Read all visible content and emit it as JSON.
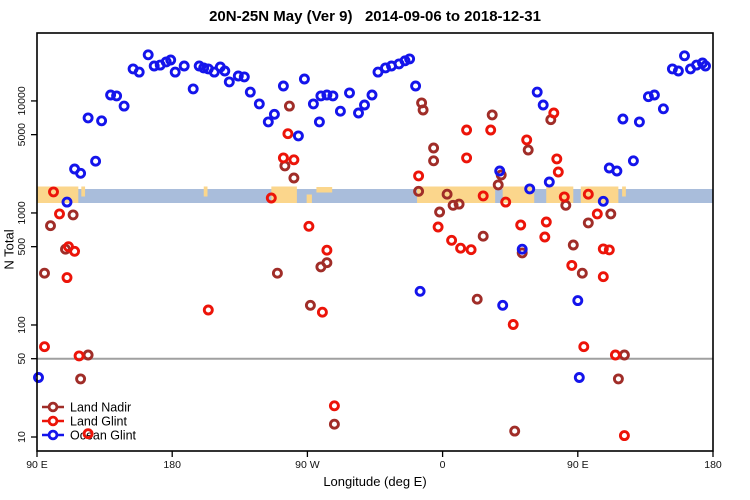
{
  "figure": {
    "title": "20N-25N May (Ver 9)   2014-09-06 to 2018-12-31",
    "xlabel": "Longitude (deg E)",
    "ylabel": "N Total"
  },
  "chart_data": {
    "type": "scatter",
    "title": "20N-25N May (Ver 9)   2014-09-06 to 2018-12-31",
    "xlabel": "Longitude (deg E)",
    "ylabel": "N Total",
    "x_axis": {
      "min": 90,
      "max": 540,
      "note": "longitude axis wraps: 90E eastward around globe to 180",
      "ticks": [
        {
          "v": 90,
          "label": "90 E"
        },
        {
          "v": 180,
          "label": "180"
        },
        {
          "v": 270,
          "label": "90 W"
        },
        {
          "v": 360,
          "label": "0"
        },
        {
          "v": 450,
          "label": "90 E"
        },
        {
          "v": 540,
          "label": "180"
        }
      ]
    },
    "y_axis": {
      "scale": "log",
      "min": 7.5,
      "max": 40400,
      "ticks": [
        10000,
        5000,
        1000,
        500,
        100,
        50,
        10
      ]
    },
    "reference_line": {
      "y": 50,
      "color": "#A0A0A0"
    },
    "map_band": {
      "description": "20N-25N latitude strip world map drawn across the plot",
      "n_top": 1710,
      "n_bottom": 1230,
      "ocean_color": "#A9BDDB",
      "land_color": "#FBD68C",
      "segments": [
        {
          "from": 90,
          "to": 117.5,
          "part": "full",
          "region": "south-asia"
        },
        {
          "from": 119.5,
          "to": 122,
          "part": "upper",
          "region": "taiwan"
        },
        {
          "from": 201,
          "to": 203.5,
          "part": "upper",
          "region": "hawaii"
        },
        {
          "from": 246,
          "to": 263,
          "part": "full",
          "region": "mexico"
        },
        {
          "from": 269.5,
          "to": 273,
          "part": "lower",
          "region": "yucatan"
        },
        {
          "from": 276,
          "to": 286.5,
          "part": "thin",
          "region": "cuba"
        },
        {
          "from": 343,
          "to": 395,
          "part": "full",
          "region": "africa"
        },
        {
          "from": 400,
          "to": 421,
          "part": "full",
          "region": "arabia"
        },
        {
          "from": 429,
          "to": 447,
          "part": "full",
          "region": "india"
        },
        {
          "from": 452,
          "to": 477,
          "part": "full",
          "region": "se-asia"
        },
        {
          "from": 479.5,
          "to": 482,
          "part": "upper",
          "region": "taiwan"
        }
      ]
    },
    "legend": {
      "position": "bottom-left",
      "items": [
        "Land Nadir",
        "Land Glint",
        "Ocean Glint"
      ]
    },
    "series": [
      {
        "name": "Land Nadir",
        "color": "#A02D28",
        "points": [
          [
            99,
            770
          ],
          [
            114,
            960
          ],
          [
            109,
            475
          ],
          [
            95,
            290
          ],
          [
            124,
            54
          ],
          [
            119,
            33
          ],
          [
            258,
            9000
          ],
          [
            255,
            2630
          ],
          [
            261,
            2050
          ],
          [
            250,
            290
          ],
          [
            279,
            330
          ],
          [
            283,
            360
          ],
          [
            272,
            150
          ],
          [
            288,
            13
          ],
          [
            346,
            9600
          ],
          [
            347,
            8300
          ],
          [
            354,
            3800
          ],
          [
            354,
            2920
          ],
          [
            344,
            1560
          ],
          [
            363,
            1470
          ],
          [
            367,
            1170
          ],
          [
            371,
            1200
          ],
          [
            358,
            1020
          ],
          [
            387,
            620
          ],
          [
            393,
            7500
          ],
          [
            432,
            6800
          ],
          [
            417,
            3650
          ],
          [
            399,
            2180
          ],
          [
            397,
            1780
          ],
          [
            442,
            1170
          ],
          [
            457,
            815
          ],
          [
            472,
            980
          ],
          [
            447,
            518
          ],
          [
            413,
            440
          ],
          [
            453,
            290
          ],
          [
            383,
            170
          ],
          [
            477,
            33
          ],
          [
            481,
            54
          ],
          [
            408,
            11.3
          ]
        ]
      },
      {
        "name": "Land Glint",
        "color": "#EC1409",
        "points": [
          [
            101,
            1540
          ],
          [
            105,
            980
          ],
          [
            111,
            500
          ],
          [
            115,
            455
          ],
          [
            110,
            265
          ],
          [
            95,
            64
          ],
          [
            118,
            53
          ],
          [
            124,
            10.7
          ],
          [
            204,
            136
          ],
          [
            246,
            1360
          ],
          [
            254,
            3100
          ],
          [
            257,
            5100
          ],
          [
            261,
            2980
          ],
          [
            271,
            760
          ],
          [
            280,
            130
          ],
          [
            283,
            465
          ],
          [
            288,
            19
          ],
          [
            344,
            2140
          ],
          [
            357,
            750
          ],
          [
            366,
            570
          ],
          [
            372,
            485
          ],
          [
            379,
            470
          ],
          [
            376,
            5500
          ],
          [
            376,
            3100
          ],
          [
            387,
            1420
          ],
          [
            392,
            5500
          ],
          [
            402,
            1250
          ],
          [
            407,
            101
          ],
          [
            412,
            780
          ],
          [
            416,
            4490
          ],
          [
            429,
            830
          ],
          [
            428,
            610
          ],
          [
            434,
            7800
          ],
          [
            436,
            3040
          ],
          [
            437,
            2320
          ],
          [
            441,
            1390
          ],
          [
            457,
            1470
          ],
          [
            463,
            980
          ],
          [
            446,
            340
          ],
          [
            467,
            270
          ],
          [
            454,
            64
          ],
          [
            475,
            54
          ],
          [
            481,
            10.3
          ],
          [
            467,
            478
          ],
          [
            471,
            468
          ]
        ]
      },
      {
        "name": "Ocean Glint",
        "color": "#1414EB",
        "points": [
          [
            164,
            25800
          ],
          [
            154,
            19300
          ],
          [
            158,
            18100
          ],
          [
            168,
            20500
          ],
          [
            172,
            20900
          ],
          [
            176,
            22300
          ],
          [
            179,
            23200
          ],
          [
            182,
            18100
          ],
          [
            188,
            20500
          ],
          [
            194,
            12800
          ],
          [
            198,
            20500
          ],
          [
            201,
            19700
          ],
          [
            204,
            19300
          ],
          [
            208,
            18100
          ],
          [
            212,
            20100
          ],
          [
            215,
            18500
          ],
          [
            218,
            14800
          ],
          [
            224,
            16700
          ],
          [
            228,
            16400
          ],
          [
            232,
            12000
          ],
          [
            238,
            9400
          ],
          [
            139,
            11300
          ],
          [
            143,
            11100
          ],
          [
            148,
            9000
          ],
          [
            124,
            7050
          ],
          [
            133,
            6650
          ],
          [
            129,
            2900
          ],
          [
            115,
            2470
          ],
          [
            119,
            2260
          ],
          [
            110,
            1250
          ],
          [
            91,
            34
          ],
          [
            244,
            6500
          ],
          [
            248,
            7600
          ],
          [
            254,
            13600
          ],
          [
            264,
            4870
          ],
          [
            268,
            15700
          ],
          [
            274,
            9400
          ],
          [
            278,
            6500
          ],
          [
            279,
            11100
          ],
          [
            283,
            11300
          ],
          [
            287,
            11100
          ],
          [
            292,
            8100
          ],
          [
            298,
            11800
          ],
          [
            304,
            7800
          ],
          [
            308,
            9200
          ],
          [
            313,
            11300
          ],
          [
            317,
            18100
          ],
          [
            322,
            19700
          ],
          [
            326,
            20500
          ],
          [
            331,
            21400
          ],
          [
            335,
            22800
          ],
          [
            338,
            23700
          ],
          [
            342,
            13600
          ],
          [
            345,
            200
          ],
          [
            398,
            2370
          ],
          [
            400,
            150
          ],
          [
            413,
            475
          ],
          [
            418,
            1640
          ],
          [
            423,
            12000
          ],
          [
            427,
            9200
          ],
          [
            431,
            1890
          ],
          [
            450,
            165
          ],
          [
            451,
            34
          ],
          [
            467,
            1270
          ],
          [
            471,
            2520
          ],
          [
            476,
            2370
          ],
          [
            480,
            6900
          ],
          [
            487,
            2920
          ],
          [
            491,
            6500
          ],
          [
            497,
            10900
          ],
          [
            501,
            11300
          ],
          [
            507,
            8500
          ],
          [
            513,
            19300
          ],
          [
            517,
            18500
          ],
          [
            521,
            25300
          ],
          [
            525,
            19300
          ],
          [
            529,
            20900
          ],
          [
            533,
            21800
          ],
          [
            535,
            20500
          ]
        ]
      }
    ]
  }
}
